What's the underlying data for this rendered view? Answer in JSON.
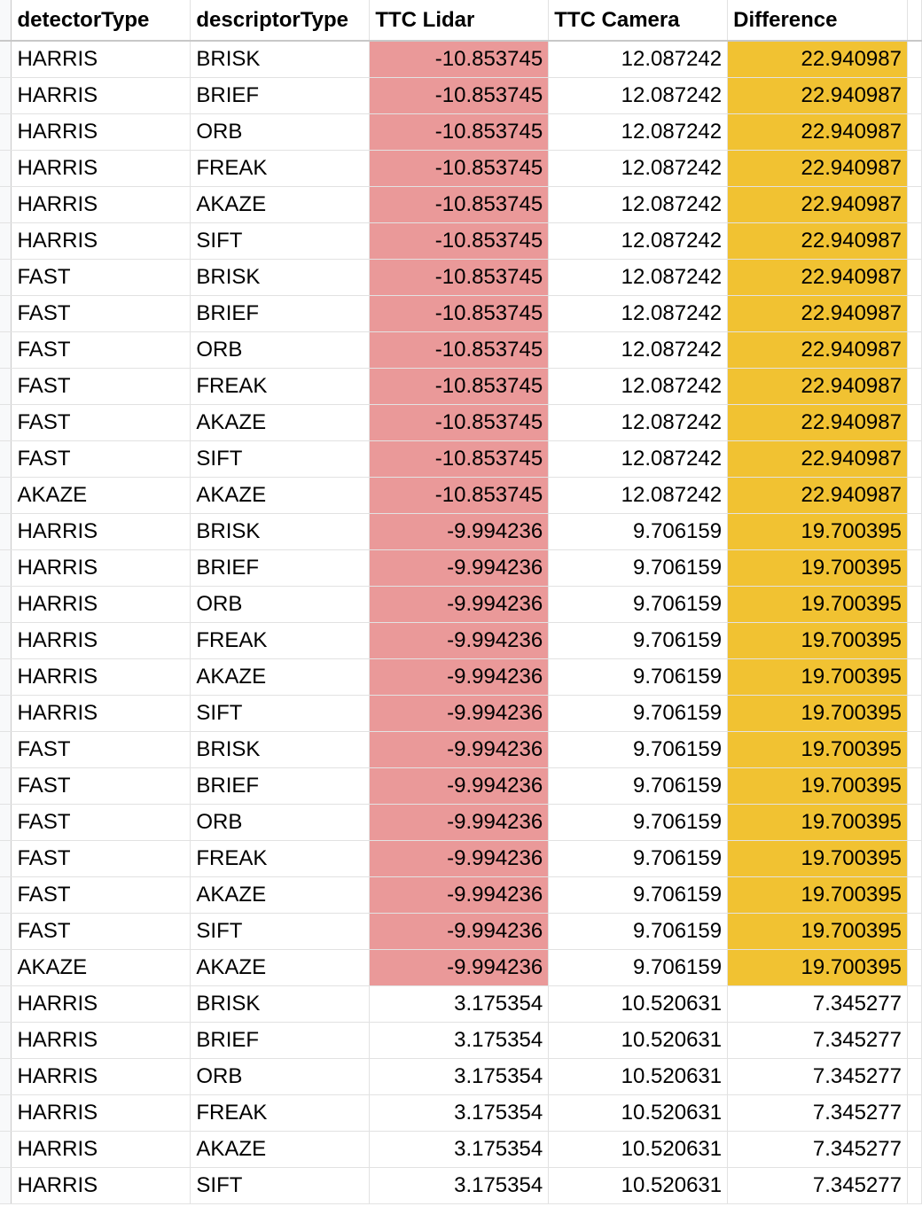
{
  "columns": [
    "detectorType",
    "descriptorType",
    "TTC Lidar",
    "TTC Camera",
    "Difference"
  ],
  "colors": {
    "lidar_highlight": "#ea9999",
    "difference_highlight": "#f1c232",
    "gridline": "#e2e2e2"
  },
  "rows": [
    {
      "detector": "HARRIS",
      "descriptor": "BRISK",
      "lidar": "-10.853745",
      "camera": "12.087242",
      "diff": "22.940987",
      "highlight": true
    },
    {
      "detector": "HARRIS",
      "descriptor": "BRIEF",
      "lidar": "-10.853745",
      "camera": "12.087242",
      "diff": "22.940987",
      "highlight": true
    },
    {
      "detector": "HARRIS",
      "descriptor": "ORB",
      "lidar": "-10.853745",
      "camera": "12.087242",
      "diff": "22.940987",
      "highlight": true
    },
    {
      "detector": "HARRIS",
      "descriptor": "FREAK",
      "lidar": "-10.853745",
      "camera": "12.087242",
      "diff": "22.940987",
      "highlight": true
    },
    {
      "detector": "HARRIS",
      "descriptor": "AKAZE",
      "lidar": "-10.853745",
      "camera": "12.087242",
      "diff": "22.940987",
      "highlight": true
    },
    {
      "detector": "HARRIS",
      "descriptor": "SIFT",
      "lidar": "-10.853745",
      "camera": "12.087242",
      "diff": "22.940987",
      "highlight": true
    },
    {
      "detector": "FAST",
      "descriptor": "BRISK",
      "lidar": "-10.853745",
      "camera": "12.087242",
      "diff": "22.940987",
      "highlight": true
    },
    {
      "detector": "FAST",
      "descriptor": "BRIEF",
      "lidar": "-10.853745",
      "camera": "12.087242",
      "diff": "22.940987",
      "highlight": true
    },
    {
      "detector": "FAST",
      "descriptor": "ORB",
      "lidar": "-10.853745",
      "camera": "12.087242",
      "diff": "22.940987",
      "highlight": true
    },
    {
      "detector": "FAST",
      "descriptor": "FREAK",
      "lidar": "-10.853745",
      "camera": "12.087242",
      "diff": "22.940987",
      "highlight": true
    },
    {
      "detector": "FAST",
      "descriptor": "AKAZE",
      "lidar": "-10.853745",
      "camera": "12.087242",
      "diff": "22.940987",
      "highlight": true
    },
    {
      "detector": "FAST",
      "descriptor": "SIFT",
      "lidar": "-10.853745",
      "camera": "12.087242",
      "diff": "22.940987",
      "highlight": true
    },
    {
      "detector": "AKAZE",
      "descriptor": "AKAZE",
      "lidar": "-10.853745",
      "camera": "12.087242",
      "diff": "22.940987",
      "highlight": true
    },
    {
      "detector": "HARRIS",
      "descriptor": "BRISK",
      "lidar": "-9.994236",
      "camera": "9.706159",
      "diff": "19.700395",
      "highlight": true
    },
    {
      "detector": "HARRIS",
      "descriptor": "BRIEF",
      "lidar": "-9.994236",
      "camera": "9.706159",
      "diff": "19.700395",
      "highlight": true
    },
    {
      "detector": "HARRIS",
      "descriptor": "ORB",
      "lidar": "-9.994236",
      "camera": "9.706159",
      "diff": "19.700395",
      "highlight": true
    },
    {
      "detector": "HARRIS",
      "descriptor": "FREAK",
      "lidar": "-9.994236",
      "camera": "9.706159",
      "diff": "19.700395",
      "highlight": true
    },
    {
      "detector": "HARRIS",
      "descriptor": "AKAZE",
      "lidar": "-9.994236",
      "camera": "9.706159",
      "diff": "19.700395",
      "highlight": true
    },
    {
      "detector": "HARRIS",
      "descriptor": "SIFT",
      "lidar": "-9.994236",
      "camera": "9.706159",
      "diff": "19.700395",
      "highlight": true
    },
    {
      "detector": "FAST",
      "descriptor": "BRISK",
      "lidar": "-9.994236",
      "camera": "9.706159",
      "diff": "19.700395",
      "highlight": true
    },
    {
      "detector": "FAST",
      "descriptor": "BRIEF",
      "lidar": "-9.994236",
      "camera": "9.706159",
      "diff": "19.700395",
      "highlight": true
    },
    {
      "detector": "FAST",
      "descriptor": "ORB",
      "lidar": "-9.994236",
      "camera": "9.706159",
      "diff": "19.700395",
      "highlight": true
    },
    {
      "detector": "FAST",
      "descriptor": "FREAK",
      "lidar": "-9.994236",
      "camera": "9.706159",
      "diff": "19.700395",
      "highlight": true
    },
    {
      "detector": "FAST",
      "descriptor": "AKAZE",
      "lidar": "-9.994236",
      "camera": "9.706159",
      "diff": "19.700395",
      "highlight": true
    },
    {
      "detector": "FAST",
      "descriptor": "SIFT",
      "lidar": "-9.994236",
      "camera": "9.706159",
      "diff": "19.700395",
      "highlight": true
    },
    {
      "detector": "AKAZE",
      "descriptor": "AKAZE",
      "lidar": "-9.994236",
      "camera": "9.706159",
      "diff": "19.700395",
      "highlight": true
    },
    {
      "detector": "HARRIS",
      "descriptor": "BRISK",
      "lidar": "3.175354",
      "camera": "10.520631",
      "diff": "7.345277",
      "highlight": false
    },
    {
      "detector": "HARRIS",
      "descriptor": "BRIEF",
      "lidar": "3.175354",
      "camera": "10.520631",
      "diff": "7.345277",
      "highlight": false
    },
    {
      "detector": "HARRIS",
      "descriptor": "ORB",
      "lidar": "3.175354",
      "camera": "10.520631",
      "diff": "7.345277",
      "highlight": false
    },
    {
      "detector": "HARRIS",
      "descriptor": "FREAK",
      "lidar": "3.175354",
      "camera": "10.520631",
      "diff": "7.345277",
      "highlight": false
    },
    {
      "detector": "HARRIS",
      "descriptor": "AKAZE",
      "lidar": "3.175354",
      "camera": "10.520631",
      "diff": "7.345277",
      "highlight": false
    },
    {
      "detector": "HARRIS",
      "descriptor": "SIFT",
      "lidar": "3.175354",
      "camera": "10.520631",
      "diff": "7.345277",
      "highlight": false
    }
  ]
}
